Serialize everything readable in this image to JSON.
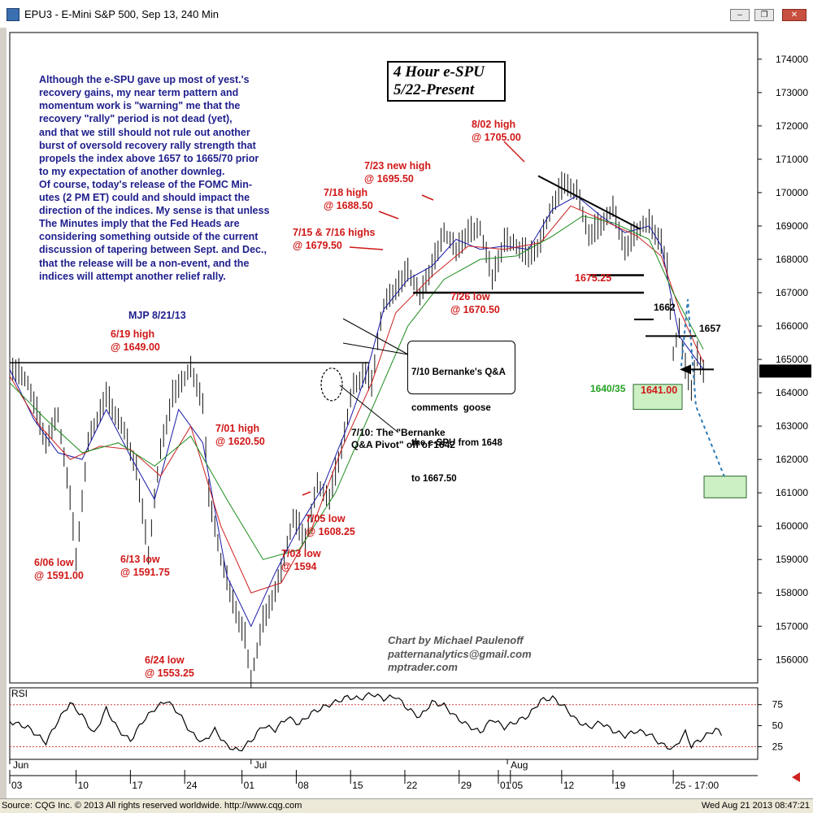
{
  "window": {
    "title": "EPU3 - E-Mini S&P 500, Sep 13, 240 Min"
  },
  "chart_title": [
    "4 Hour e-SPU",
    "5/22-Present"
  ],
  "commentary": {
    "lines": [
      "Although the e-SPU gave up most of yest.'s",
      "recovery gains, my near term pattern and",
      "momentum work is \"warning\" me that the",
      "recovery \"rally\" period is not dead (yet),",
      "and that we still should not rule out another",
      "burst of oversold recovery rally strength that",
      "propels the index above 1657 to 1665/70 prior",
      "to my expectation of another downleg.",
      "Of course, today's release of the FOMC Min-",
      "utes (2 PM ET) could and should impact the",
      "direction of the indices. My sense is that unless",
      "The Minutes imply that the Fed Heads are",
      "considering something outside of the current",
      "discussion of tapering between Sept. and Dec.,",
      "that the release will be a non-event, and the",
      "indices will attempt another relief rally."
    ],
    "signature": "MJP 8/21/13"
  },
  "credits": [
    "Chart by Michael Paulenoff",
    "patternanalytics@gmail.com",
    "mptrader.com"
  ],
  "bernanke_callout": [
    "7/10 Bernanke's Q&A",
    "comments  goose",
    "the e-SPU from 1648",
    "to 1667.50"
  ],
  "status": {
    "left": "Source: CQG Inc. © 2013 All rights reserved worldwide. http://www.cqg.com",
    "right": "Wed Aug 21 2013 08:47:21"
  },
  "colors": {
    "annotation_red": "#d01818",
    "commentary_blue": "#1e1e8c",
    "ma_blue": "#1a1aa8",
    "ma_red": "#cc2020",
    "ma_green": "#1c8c1c",
    "target_box": "#ccefc4"
  },
  "chart_data": {
    "type": "line",
    "subtype": "ohlc-bars with moving averages",
    "instrument": "E-Mini S&P 500 Sep 13 (EPU3)",
    "interval": "240 Min",
    "y_ticks": [
      174000,
      173000,
      172000,
      171000,
      170000,
      169000,
      168000,
      167000,
      166000,
      165000,
      164000,
      163000,
      162000,
      161000,
      160000,
      159000,
      158000,
      157000,
      156000
    ],
    "ylim": [
      155300,
      174800
    ],
    "last_price": "164650",
    "x_months": [
      "Jun",
      "Jul",
      "Aug"
    ],
    "x_ticks": [
      "03",
      "10",
      "17",
      "24",
      "01",
      "08",
      "15",
      "22",
      "29",
      "01",
      "05",
      "12",
      "19",
      "25 - 17:00"
    ],
    "price_path": [
      [
        0,
        164900
      ],
      [
        3,
        164300
      ],
      [
        6,
        162600
      ],
      [
        8,
        163300
      ],
      [
        10,
        160900
      ],
      [
        11,
        159100
      ],
      [
        13,
        162500
      ],
      [
        16,
        164000
      ],
      [
        19,
        162800
      ],
      [
        21,
        161800
      ],
      [
        23,
        159200
      ],
      [
        25,
        162300
      ],
      [
        27,
        164000
      ],
      [
        30,
        164700
      ],
      [
        32,
        163800
      ],
      [
        33,
        161000
      ],
      [
        35,
        159000
      ],
      [
        37,
        157800
      ],
      [
        39,
        156700
      ],
      [
        40,
        155400
      ],
      [
        42,
        157200
      ],
      [
        45,
        158600
      ],
      [
        47,
        160300
      ],
      [
        49,
        159700
      ],
      [
        51,
        161200
      ],
      [
        53,
        160900
      ],
      [
        55,
        162400
      ],
      [
        57,
        164200
      ],
      [
        59,
        164700
      ],
      [
        60,
        164300
      ],
      [
        61,
        165600
      ],
      [
        62,
        166600
      ],
      [
        64,
        167200
      ],
      [
        66,
        167700
      ],
      [
        68,
        166900
      ],
      [
        70,
        167900
      ],
      [
        72,
        168800
      ],
      [
        74,
        168300
      ],
      [
        76,
        168900
      ],
      [
        78,
        168900
      ],
      [
        80,
        167500
      ],
      [
        82,
        168600
      ],
      [
        84,
        168400
      ],
      [
        86,
        168200
      ],
      [
        88,
        168500
      ],
      [
        90,
        169700
      ],
      [
        92,
        170400
      ],
      [
        94,
        170000
      ],
      [
        96,
        168800
      ],
      [
        98,
        169100
      ],
      [
        100,
        169500
      ],
      [
        102,
        168400
      ],
      [
        104,
        168900
      ],
      [
        106,
        169100
      ],
      [
        108,
        168600
      ],
      [
        109,
        167800
      ],
      [
        110,
        165200
      ],
      [
        111,
        165900
      ],
      [
        112,
        164800
      ],
      [
        113,
        164200
      ],
      [
        114,
        165200
      ],
      [
        115,
        164600
      ]
    ],
    "moving_averages": [
      {
        "color": "blue",
        "values": [
          [
            0,
            164700
          ],
          [
            4,
            163200
          ],
          [
            8,
            162200
          ],
          [
            12,
            162000
          ],
          [
            16,
            163500
          ],
          [
            20,
            162100
          ],
          [
            24,
            160800
          ],
          [
            28,
            163500
          ],
          [
            32,
            162500
          ],
          [
            36,
            158500
          ],
          [
            40,
            157000
          ],
          [
            44,
            158600
          ],
          [
            48,
            160000
          ],
          [
            52,
            161200
          ],
          [
            56,
            163000
          ],
          [
            59,
            164500
          ],
          [
            62,
            166500
          ],
          [
            66,
            167400
          ],
          [
            70,
            167800
          ],
          [
            74,
            168600
          ],
          [
            78,
            168300
          ],
          [
            82,
            168400
          ],
          [
            86,
            168300
          ],
          [
            90,
            169500
          ],
          [
            94,
            169900
          ],
          [
            98,
            169300
          ],
          [
            102,
            168800
          ],
          [
            106,
            169000
          ],
          [
            108,
            168400
          ],
          [
            111,
            165700
          ],
          [
            115,
            164700
          ]
        ]
      },
      {
        "color": "red",
        "values": [
          [
            0,
            164500
          ],
          [
            5,
            163000
          ],
          [
            10,
            162000
          ],
          [
            15,
            162400
          ],
          [
            20,
            162300
          ],
          [
            25,
            161500
          ],
          [
            30,
            163000
          ],
          [
            35,
            160000
          ],
          [
            40,
            158000
          ],
          [
            45,
            158300
          ],
          [
            50,
            159900
          ],
          [
            55,
            162300
          ],
          [
            60,
            164300
          ],
          [
            64,
            166400
          ],
          [
            70,
            167500
          ],
          [
            76,
            168400
          ],
          [
            82,
            168300
          ],
          [
            88,
            168500
          ],
          [
            93,
            169600
          ],
          [
            98,
            169200
          ],
          [
            104,
            168700
          ],
          [
            108,
            168100
          ],
          [
            111,
            166500
          ],
          [
            115,
            164900
          ]
        ]
      },
      {
        "color": "green",
        "values": [
          [
            0,
            164300
          ],
          [
            6,
            163200
          ],
          [
            12,
            162200
          ],
          [
            18,
            162500
          ],
          [
            24,
            161800
          ],
          [
            30,
            162700
          ],
          [
            36,
            160800
          ],
          [
            42,
            159000
          ],
          [
            48,
            159300
          ],
          [
            54,
            161000
          ],
          [
            60,
            163500
          ],
          [
            66,
            166000
          ],
          [
            72,
            167400
          ],
          [
            78,
            168000
          ],
          [
            84,
            168100
          ],
          [
            90,
            168700
          ],
          [
            95,
            169300
          ],
          [
            100,
            169100
          ],
          [
            106,
            168600
          ],
          [
            110,
            167000
          ],
          [
            115,
            165300
          ]
        ]
      }
    ],
    "rsi": {
      "label": "RSI",
      "ticks": [
        75,
        50,
        25
      ],
      "ylim": [
        10,
        95
      ],
      "values": [
        [
          0,
          55
        ],
        [
          3,
          48
        ],
        [
          6,
          30
        ],
        [
          8,
          56
        ],
        [
          10,
          77
        ],
        [
          12,
          62
        ],
        [
          14,
          40
        ],
        [
          16,
          70
        ],
        [
          18,
          45
        ],
        [
          20,
          32
        ],
        [
          22,
          55
        ],
        [
          24,
          70
        ],
        [
          26,
          80
        ],
        [
          28,
          65
        ],
        [
          30,
          42
        ],
        [
          32,
          30
        ],
        [
          34,
          45
        ],
        [
          36,
          26
        ],
        [
          38,
          20
        ],
        [
          40,
          32
        ],
        [
          42,
          50
        ],
        [
          44,
          45
        ],
        [
          46,
          60
        ],
        [
          48,
          52
        ],
        [
          50,
          65
        ],
        [
          52,
          72
        ],
        [
          54,
          78
        ],
        [
          56,
          84
        ],
        [
          58,
          82
        ],
        [
          60,
          88
        ],
        [
          62,
          82
        ],
        [
          64,
          85
        ],
        [
          66,
          70
        ],
        [
          68,
          60
        ],
        [
          70,
          78
        ],
        [
          72,
          74
        ],
        [
          74,
          60
        ],
        [
          76,
          50
        ],
        [
          78,
          42
        ],
        [
          80,
          58
        ],
        [
          82,
          48
        ],
        [
          84,
          55
        ],
        [
          86,
          62
        ],
        [
          88,
          80
        ],
        [
          90,
          83
        ],
        [
          92,
          72
        ],
        [
          94,
          56
        ],
        [
          96,
          48
        ],
        [
          98,
          54
        ],
        [
          100,
          44
        ],
        [
          102,
          38
        ],
        [
          104,
          44
        ],
        [
          106,
          40
        ],
        [
          108,
          28
        ],
        [
          110,
          22
        ],
        [
          112,
          42
        ],
        [
          113,
          26
        ],
        [
          115,
          36
        ],
        [
          117,
          46
        ],
        [
          118,
          40
        ]
      ]
    },
    "annotations": {
      "high_jun19": [
        "6/19 high",
        "@ 1649.00"
      ],
      "low_jun06": [
        "6/06 low",
        "@ 1591.00"
      ],
      "low_jun13": [
        "6/13 low",
        "@ 1591.75"
      ],
      "low_jun24": [
        "6/24 low",
        "@ 1553.25"
      ],
      "high_jul01": [
        "7/01 high",
        "@ 1620.50"
      ],
      "low_jul03": [
        "7/03 low",
        "@ 1594"
      ],
      "low_jul05": [
        "7/05 low",
        "@ 1608.25"
      ],
      "highs_jul15": [
        "7/15 & 7/16 highs",
        "@ 1679.50"
      ],
      "high_jul18": [
        "7/18 high",
        "@ 1688.50"
      ],
      "high_jul23": [
        "7/23 new high",
        "@ 1695.50"
      ],
      "high_aug02": [
        "8/02 high",
        "@ 1705.00"
      ],
      "low_jul26": [
        "7/26 low",
        "@ 1670.50"
      ],
      "level_1675": "1675.25",
      "level_1662": "1662",
      "level_1657": "1657",
      "support_zone": "1640/35",
      "low_1641": "1641.00",
      "pivot": [
        "7/10: The \"Bernanke",
        "Q&A Pivot\" off of 1642"
      ]
    }
  }
}
